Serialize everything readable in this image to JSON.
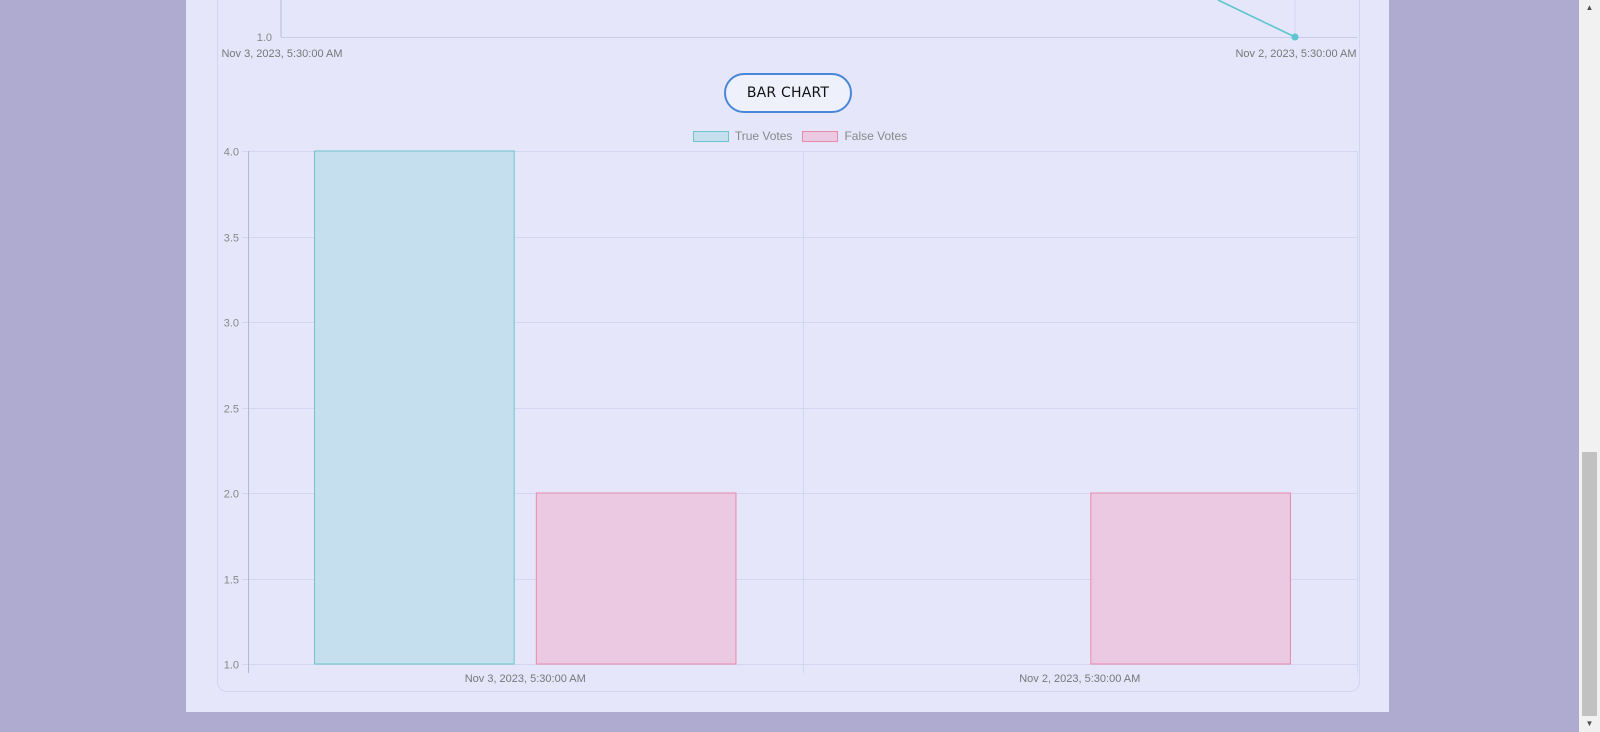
{
  "line_chart_partial": {
    "y_tick_label": "1.0",
    "x_labels": [
      "Nov 3, 2023, 5:30:00 AM",
      "Nov 2, 2023, 5:30:00 AM"
    ],
    "line_color": "#5cc5cf"
  },
  "chart_toggle": {
    "label": "BAR CHART"
  },
  "chart_data": {
    "type": "bar",
    "categories": [
      "Nov 3, 2023, 5:30:00 AM",
      "Nov 2, 2023, 5:30:00 AM"
    ],
    "series": [
      {
        "name": "True Votes",
        "values": [
          4,
          1
        ],
        "fill": "#c5dfee",
        "stroke": "#6cc4cc"
      },
      {
        "name": "False Votes",
        "values": [
          2,
          2
        ],
        "fill": "#ecc9e3",
        "stroke": "#e78aab"
      }
    ],
    "ylim": [
      1.0,
      4.0
    ],
    "yticks": [
      "1.0",
      "1.5",
      "2.0",
      "2.5",
      "3.0",
      "3.5",
      "4.0"
    ],
    "grid": true,
    "legend": "top"
  },
  "colors": {
    "page_background": "#aeaad0",
    "panel_background": "#e5e6fa",
    "button_border": "#4a86d8"
  }
}
